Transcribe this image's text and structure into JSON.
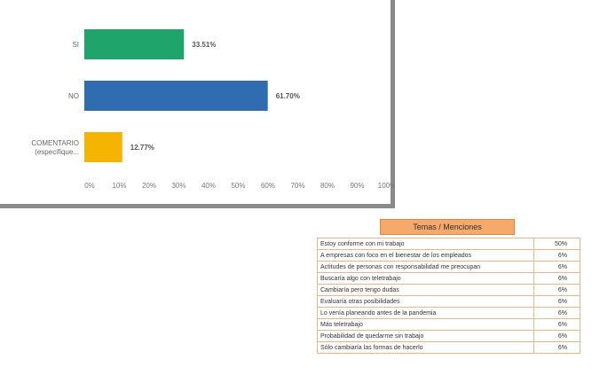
{
  "chart_data": {
    "type": "bar",
    "orientation": "horizontal",
    "categories": [
      "SI",
      "NO",
      "COMENTARIO|(especifique..."
    ],
    "values": [
      33.51,
      61.7,
      12.77
    ],
    "value_labels": [
      "33.51%",
      "61.70%",
      "12.77%"
    ],
    "colors": [
      "#1fa56b",
      "#2f6db0",
      "#f5b400"
    ],
    "xlim": [
      0,
      100
    ],
    "x_ticks": [
      "0%",
      "10%",
      "20%",
      "30%",
      "40%",
      "50%",
      "60%",
      "70%",
      "80%",
      "90%",
      "100%"
    ],
    "grid": false
  },
  "mentions": {
    "title": "Temas / Menciones",
    "rows": [
      {
        "text": "Estoy conforme con mi trabajo",
        "pct": "50%"
      },
      {
        "text": "A empresas con foco en el bienestar de los empleados",
        "pct": "6%"
      },
      {
        "text": "Actitudes de personas con responsabilidad me preocupan",
        "pct": "6%"
      },
      {
        "text": "Buscaría algo con teletrabajo",
        "pct": "6%"
      },
      {
        "text": "Cambiaría pero tengo dudas",
        "pct": "6%"
      },
      {
        "text": "Evaluaría otras posibilidades",
        "pct": "6%"
      },
      {
        "text": "Lo venía planeando antes de la pandemia",
        "pct": "6%"
      },
      {
        "text": "Más teletrabajo",
        "pct": "6%"
      },
      {
        "text": "Probabilidad de quedarme sin trabajo",
        "pct": "6%"
      },
      {
        "text": "Sólo cambiaría las formas de hacerlo",
        "pct": "6%"
      }
    ]
  }
}
